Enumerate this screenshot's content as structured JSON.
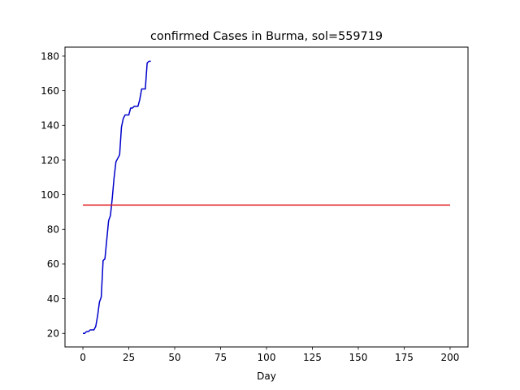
{
  "chart_data": {
    "type": "line",
    "title": "confirmed Cases in Burma, sol=559719",
    "xlabel": "Day",
    "ylabel": "",
    "xlim": [
      -9.75,
      209.75
    ],
    "ylim": [
      12.15,
      185.15
    ],
    "xticks": [
      0,
      25,
      50,
      75,
      100,
      125,
      150,
      175,
      200
    ],
    "yticks": [
      20,
      40,
      60,
      80,
      100,
      120,
      140,
      160,
      180
    ],
    "grid": false,
    "series": [
      {
        "color": "#0000cc",
        "x": [
          0,
          1,
          2,
          3,
          4,
          5,
          6,
          7,
          8,
          9,
          10,
          11,
          12,
          13,
          14,
          15,
          16,
          17,
          18,
          19,
          20,
          21,
          22,
          23,
          24,
          25,
          26,
          27,
          28,
          29,
          30,
          31,
          32,
          33,
          34,
          35,
          36,
          37
        ],
        "y": [
          20,
          20,
          21,
          21,
          22,
          22,
          22,
          24,
          30,
          38,
          41,
          62,
          63,
          74,
          85,
          88,
          98,
          110,
          119,
          121,
          123,
          139,
          144,
          146,
          146,
          146,
          150,
          150,
          151,
          151,
          151,
          155,
          161,
          161,
          161,
          176,
          177,
          177
        ]
      },
      {
        "color": "#e41a1c",
        "x": [
          0,
          200
        ],
        "y": [
          94,
          94
        ]
      }
    ]
  }
}
